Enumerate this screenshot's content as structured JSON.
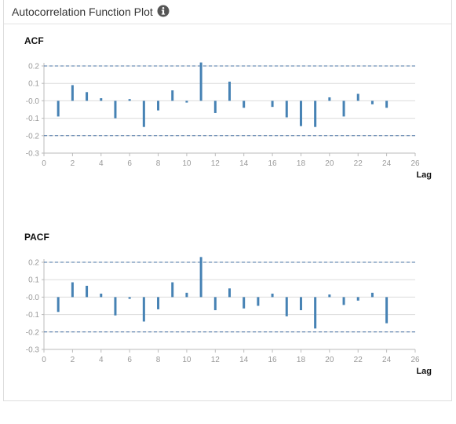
{
  "header": {
    "title": "Autocorrelation Function Plot",
    "info_icon": "info-icon"
  },
  "colors": {
    "bar": "#4682b4",
    "bound": "#4b74a6",
    "grid": "#dcdcdc",
    "axis": "#bbbbbb"
  },
  "chart_data": [
    {
      "type": "bar",
      "title": "ACF",
      "xlabel": "Lag",
      "ylabel": "",
      "xlim": [
        0,
        26
      ],
      "ylim": [
        -0.3,
        0.2
      ],
      "x_ticks": [
        "0",
        "2",
        "4",
        "6",
        "8",
        "10",
        "12",
        "14",
        "16",
        "18",
        "20",
        "22",
        "24",
        "26"
      ],
      "y_ticks": [
        "0.2",
        "0.1",
        "-0.0",
        "-0.1",
        "-0.2",
        "-0.3"
      ],
      "confidence_bounds": [
        0.2,
        -0.2
      ],
      "grid": true,
      "lags": [
        1,
        2,
        3,
        4,
        5,
        6,
        7,
        8,
        9,
        10,
        11,
        12,
        13,
        14,
        15,
        16,
        17,
        18,
        19,
        20,
        21,
        22,
        23,
        24
      ],
      "values": [
        -0.09,
        0.09,
        0.05,
        0.015,
        -0.1,
        0.01,
        -0.15,
        -0.055,
        0.06,
        -0.01,
        0.22,
        -0.07,
        0.11,
        -0.04,
        0.0,
        -0.035,
        -0.095,
        -0.145,
        -0.15,
        0.02,
        -0.09,
        0.04,
        -0.02,
        -0.04
      ]
    },
    {
      "type": "bar",
      "title": "PACF",
      "xlabel": "Lag",
      "ylabel": "",
      "xlim": [
        0,
        26
      ],
      "ylim": [
        -0.3,
        0.2
      ],
      "x_ticks": [
        "0",
        "2",
        "4",
        "6",
        "8",
        "10",
        "12",
        "14",
        "16",
        "18",
        "20",
        "22",
        "24",
        "26"
      ],
      "y_ticks": [
        "0.2",
        "0.1",
        "-0.0",
        "-0.1",
        "-0.2",
        "-0.3"
      ],
      "confidence_bounds": [
        0.2,
        -0.2
      ],
      "grid": true,
      "lags": [
        1,
        2,
        3,
        4,
        5,
        6,
        7,
        8,
        9,
        10,
        11,
        12,
        13,
        14,
        15,
        16,
        17,
        18,
        19,
        20,
        21,
        22,
        23,
        24
      ],
      "values": [
        -0.085,
        0.085,
        0.065,
        0.02,
        -0.105,
        -0.01,
        -0.14,
        -0.07,
        0.085,
        0.025,
        0.23,
        -0.075,
        0.05,
        -0.065,
        -0.05,
        0.02,
        -0.11,
        -0.075,
        -0.18,
        0.015,
        -0.045,
        -0.02,
        0.025,
        -0.15
      ]
    }
  ]
}
